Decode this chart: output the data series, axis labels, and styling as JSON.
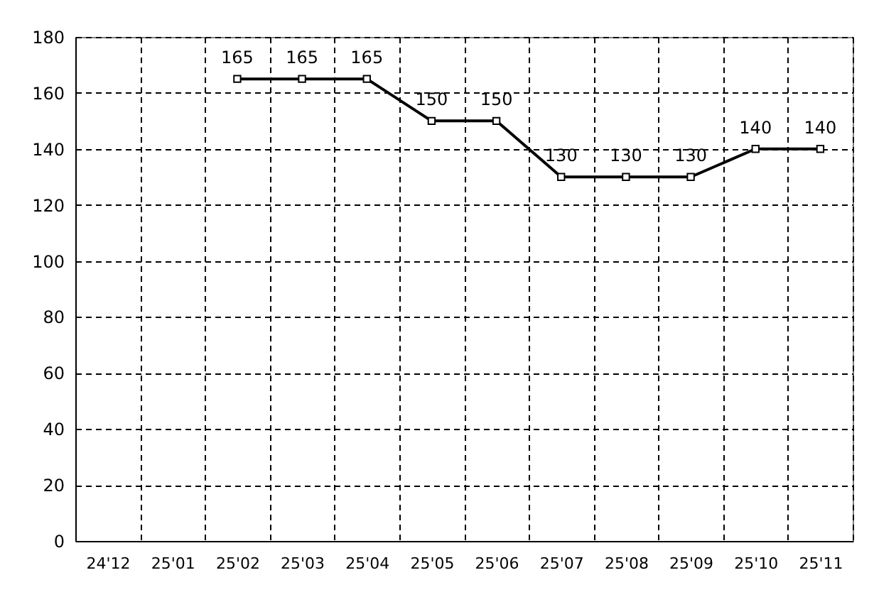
{
  "chart_data": {
    "type": "line",
    "categories": [
      "24'12",
      "25'01",
      "25'02",
      "25'03",
      "25'04",
      "25'05",
      "25'06",
      "25'07",
      "25'08",
      "25'09",
      "25'10",
      "25'11"
    ],
    "series": [
      {
        "color": "#000000",
        "values": [
          null,
          null,
          165,
          165,
          165,
          150,
          150,
          130,
          130,
          130,
          140,
          140
        ]
      }
    ],
    "ylim": [
      0,
      180
    ],
    "yticks": [
      0,
      20,
      40,
      60,
      80,
      100,
      120,
      140,
      160,
      180
    ],
    "grid": true,
    "marker": "square",
    "line_style": "solid",
    "data_labels": true
  }
}
